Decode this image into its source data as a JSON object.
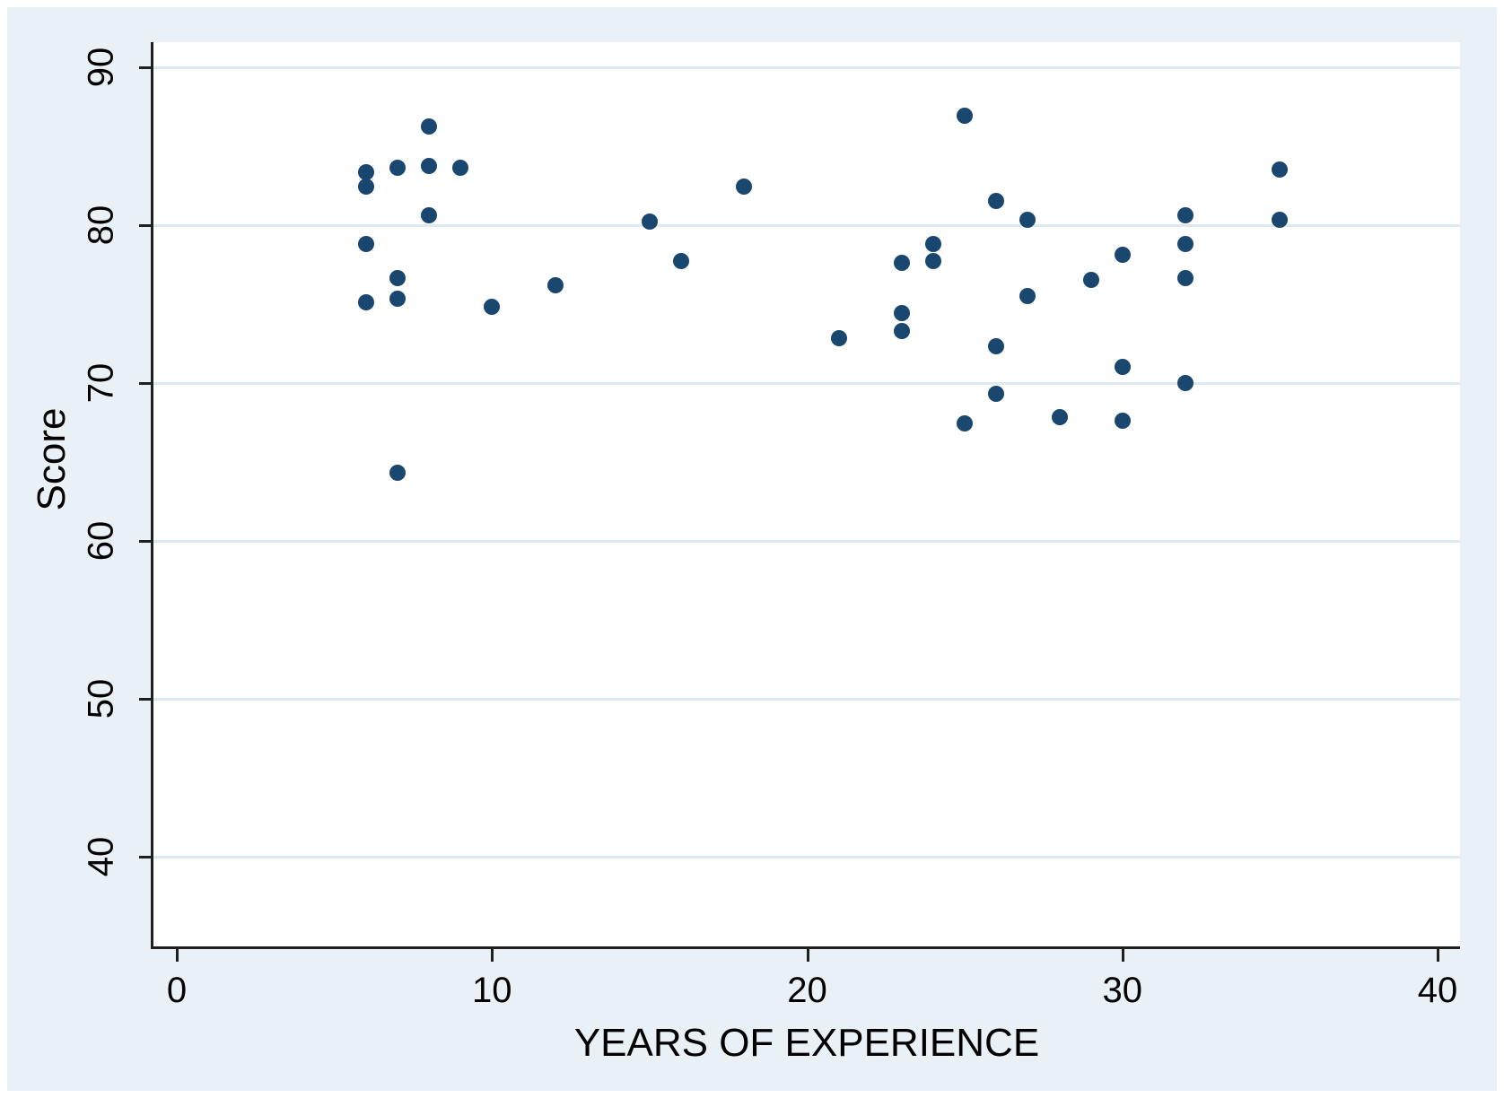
{
  "figure": {
    "background_color": "#e9f1f6",
    "plot_background_color": "#ffffff",
    "axis_line_color": "#1f1f1f",
    "grid_color": "#dce9f1"
  },
  "chart_data": {
    "type": "scatter",
    "title": "",
    "xlabel": "YEARS OF EXPERIENCE",
    "ylabel": "Score",
    "x_ticks": [
      0,
      10,
      20,
      30,
      40
    ],
    "y_ticks": [
      40,
      50,
      60,
      70,
      80,
      90
    ],
    "xlim": [
      -0.7,
      40.7
    ],
    "ylim": [
      34.3,
      91.6
    ],
    "grid": "horizontal-only",
    "legend": null,
    "marker_color": "#1a476f",
    "marker_shape": "circle",
    "points": [
      [
        6,
        83.3
      ],
      [
        6,
        82.4
      ],
      [
        6,
        78.8
      ],
      [
        6,
        75.1
      ],
      [
        7,
        83.6
      ],
      [
        7,
        76.6
      ],
      [
        7,
        75.3
      ],
      [
        7,
        64.3
      ],
      [
        8,
        86.2
      ],
      [
        8,
        83.7
      ],
      [
        8,
        80.6
      ],
      [
        9,
        83.6
      ],
      [
        10,
        74.8
      ],
      [
        12,
        76.2
      ],
      [
        15,
        80.2
      ],
      [
        16,
        77.7
      ],
      [
        18,
        82.4
      ],
      [
        21,
        72.8
      ],
      [
        23,
        77.6
      ],
      [
        23,
        74.4
      ],
      [
        23,
        73.3
      ],
      [
        24,
        78.8
      ],
      [
        24,
        77.7
      ],
      [
        25,
        86.9
      ],
      [
        25,
        67.4
      ],
      [
        26,
        81.5
      ],
      [
        26,
        72.3
      ],
      [
        26,
        69.3
      ],
      [
        27,
        80.3
      ],
      [
        27,
        75.5
      ],
      [
        28,
        67.8
      ],
      [
        29,
        76.5
      ],
      [
        30,
        78.1
      ],
      [
        30,
        71.0
      ],
      [
        30,
        67.6
      ],
      [
        32,
        80.6
      ],
      [
        32,
        78.8
      ],
      [
        32,
        76.6
      ],
      [
        32,
        70.0
      ],
      [
        35,
        83.5
      ],
      [
        35,
        80.3
      ]
    ]
  }
}
